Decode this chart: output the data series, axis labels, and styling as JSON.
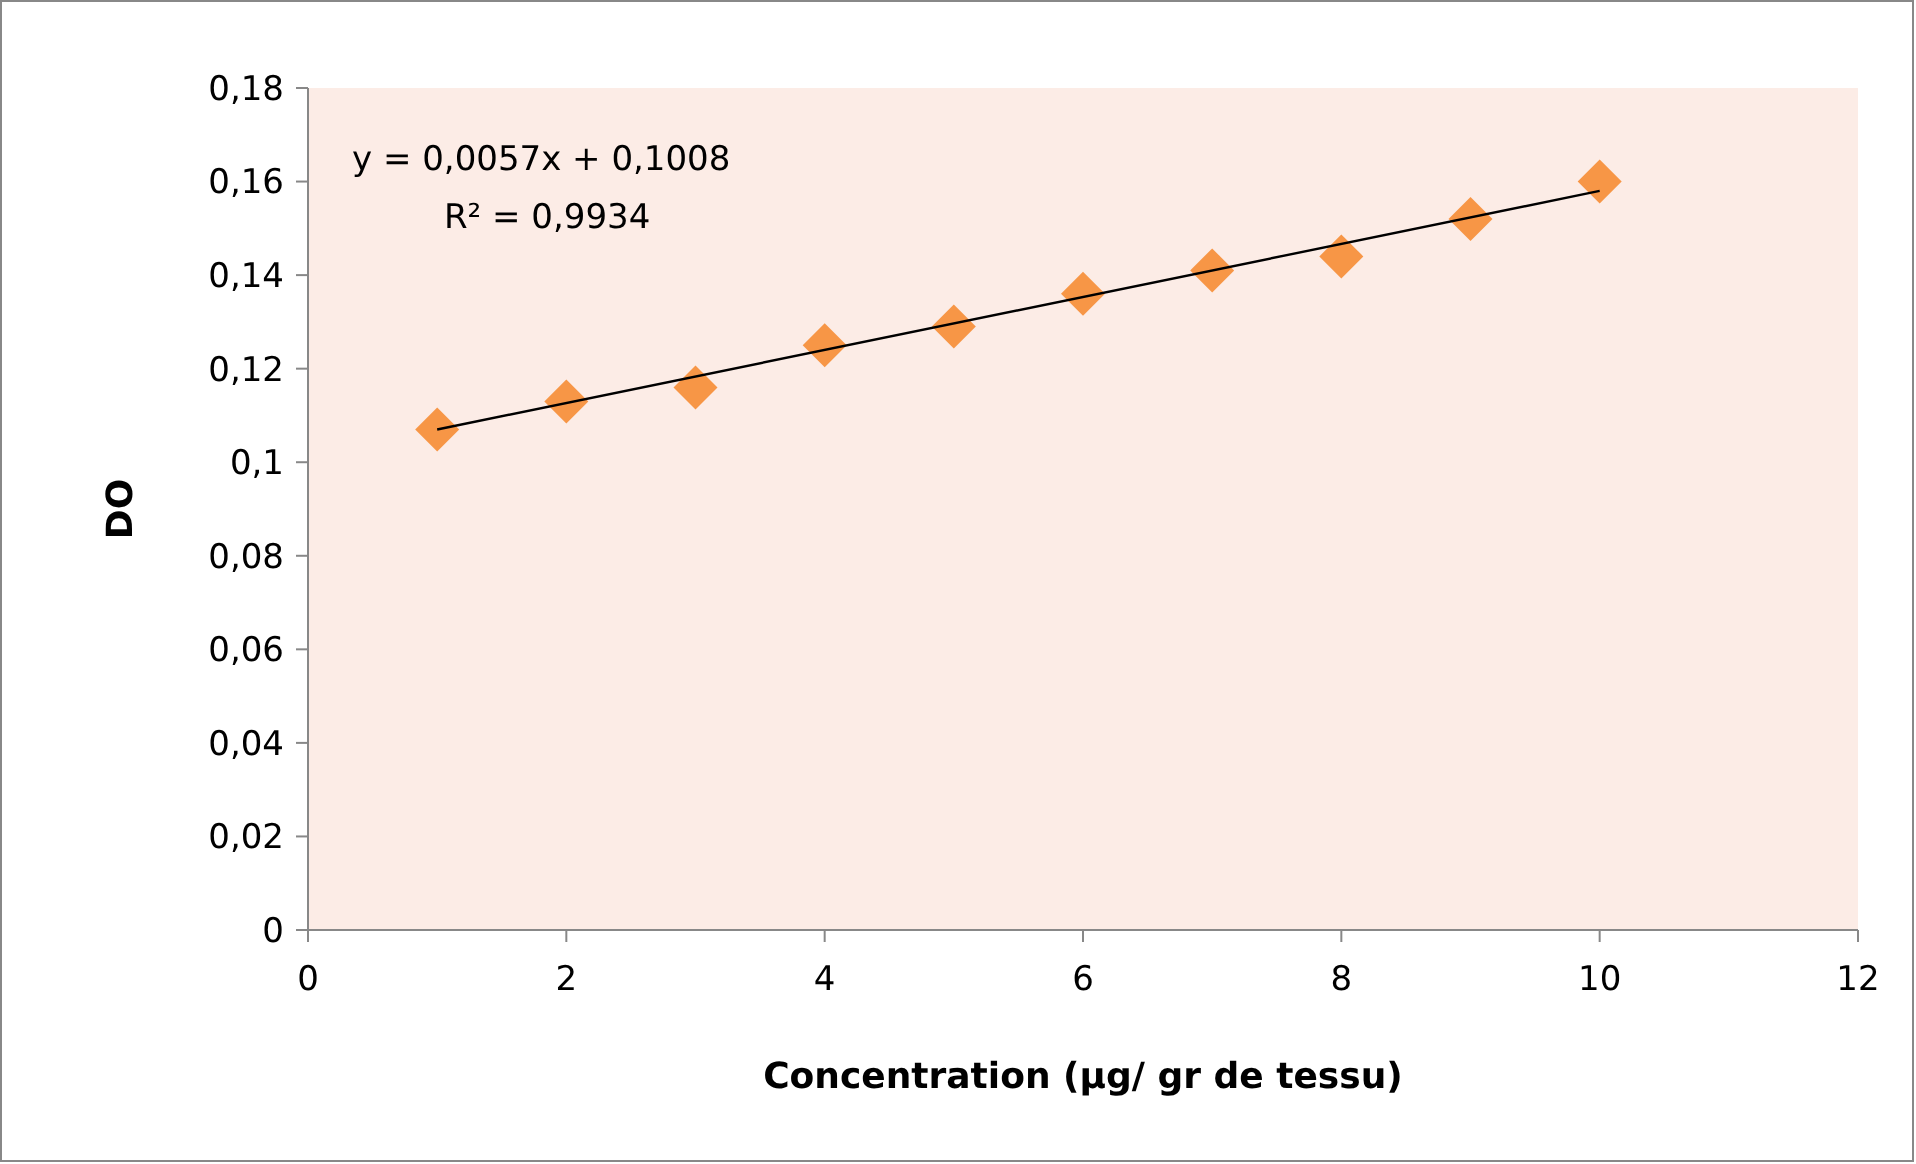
{
  "chart_data": {
    "type": "scatter",
    "xlabel": "Concentration (µg/ gr de tessu)",
    "ylabel": "DO",
    "annotations": [
      "y = 0,0057x + 0,1008",
      "R² = 0,9934"
    ],
    "x": [
      1,
      2,
      3,
      4,
      5,
      6,
      7,
      8,
      9,
      10
    ],
    "series": [
      {
        "color": "#f79646",
        "marker": "diamond",
        "values": [
          0.107,
          0.113,
          0.116,
          0.125,
          0.129,
          0.136,
          0.141,
          0.144,
          0.152,
          0.16
        ]
      },
      {
        "type": "line",
        "color": "#000000",
        "x": [
          1,
          10
        ],
        "values": [
          0.107,
          0.158
        ],
        "marker": "none"
      }
    ],
    "xlim": [
      0,
      12
    ],
    "xticks": [
      0,
      2,
      4,
      6,
      8,
      10,
      12
    ],
    "ylim": [
      0,
      0.18
    ],
    "yticks": [
      0,
      {
        "value": 0.02,
        "label": "0,02"
      },
      {
        "value": 0.04,
        "label": "0,04"
      },
      {
        "value": 0.06,
        "label": "0,06"
      },
      {
        "value": 0.08,
        "label": "0,08"
      },
      {
        "value": 0.1,
        "label": "0,1"
      },
      {
        "value": 0.12,
        "label": "0,12"
      },
      {
        "value": 0.14,
        "label": "0,14"
      },
      {
        "value": 0.16,
        "label": "0,16"
      },
      {
        "value": 0.18,
        "label": "0,18"
      }
    ],
    "grid": false
  }
}
